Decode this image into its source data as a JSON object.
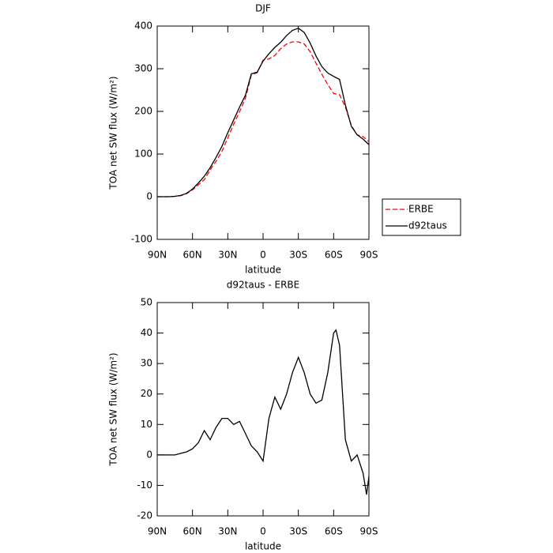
{
  "chart_data": [
    {
      "type": "line",
      "title": "DJF",
      "xlabel": "latitude",
      "ylabel": "TOA net SW flux (W/m²)",
      "x": [
        90,
        85,
        80,
        75,
        70,
        65,
        60,
        55,
        50,
        45,
        40,
        35,
        30,
        25,
        20,
        15,
        10,
        5,
        0,
        -5,
        -10,
        -15,
        -20,
        -25,
        -30,
        -35,
        -40,
        -45,
        -50,
        -55,
        -60,
        -65,
        -70,
        -75,
        -80,
        -85,
        -90
      ],
      "series": [
        {
          "name": "ERBE",
          "color": "#ff0000",
          "dash": true,
          "values": [
            0,
            0,
            0,
            1,
            2.5,
            7,
            16,
            28,
            40,
            63,
            83,
            106,
            138,
            170,
            199,
            231,
            285,
            291,
            320,
            323,
            331,
            347,
            358,
            363,
            363,
            358,
            340,
            313,
            287,
            263,
            242,
            239,
            210,
            167,
            145,
            141,
            129
          ]
        },
        {
          "name": "d92taus",
          "color": "#000000",
          "dash": false,
          "values": [
            0,
            0,
            0,
            1,
            3,
            8,
            18,
            32,
            48,
            68,
            92,
            118,
            150,
            180,
            210,
            238,
            288,
            292,
            318,
            335,
            350,
            362,
            378,
            390,
            395,
            385,
            360,
            330,
            305,
            290,
            282,
            275,
            215,
            165,
            145,
            135,
            122
          ]
        }
      ],
      "xlim": [
        90,
        -90
      ],
      "xticks": [
        {
          "value": 90,
          "label": "90N"
        },
        {
          "value": 60,
          "label": "60N"
        },
        {
          "value": 30,
          "label": "30N"
        },
        0,
        {
          "value": -30,
          "label": "30S"
        },
        {
          "value": -60,
          "label": "60S"
        },
        {
          "value": -90,
          "label": "90S"
        }
      ],
      "ylim": [
        -100,
        400
      ],
      "yticks": [
        -100,
        0,
        100,
        200,
        300,
        400
      ],
      "legend": "right"
    },
    {
      "type": "line",
      "title": "d92taus - ERBE",
      "xlabel": "latitude",
      "ylabel": "TOA net SW flux (W/m²)",
      "x": [
        90,
        85,
        80,
        75,
        70,
        65,
        60,
        55,
        50,
        45,
        40,
        35,
        30,
        25,
        20,
        15,
        10,
        5,
        0,
        -5,
        -10,
        -15,
        -20,
        -25,
        -30,
        -35,
        -40,
        -45,
        -50,
        -55,
        -60,
        -62,
        -65,
        -70,
        -75,
        -80,
        -85,
        -88,
        -90
      ],
      "series": [
        {
          "name": "d92taus - ERBE",
          "color": "#000000",
          "dash": false,
          "values": [
            0,
            0,
            0,
            0,
            0.5,
            1,
            2,
            4,
            8,
            5,
            9,
            12,
            12,
            10,
            11,
            7,
            3,
            1,
            -2,
            12,
            19,
            15,
            20,
            27,
            32,
            27,
            20,
            17,
            18,
            27,
            40,
            41,
            36,
            5,
            -2,
            0,
            -6,
            -13,
            -7
          ]
        }
      ],
      "xlim": [
        90,
        -90
      ],
      "xticks": [
        {
          "value": 90,
          "label": "90N"
        },
        {
          "value": 60,
          "label": "60N"
        },
        {
          "value": 30,
          "label": "30N"
        },
        0,
        {
          "value": -30,
          "label": "30S"
        },
        {
          "value": -60,
          "label": "60S"
        },
        {
          "value": -90,
          "label": "90S"
        }
      ],
      "ylim": [
        -20,
        50
      ],
      "yticks": [
        -20,
        -10,
        0,
        10,
        20,
        30,
        40,
        50
      ]
    }
  ]
}
